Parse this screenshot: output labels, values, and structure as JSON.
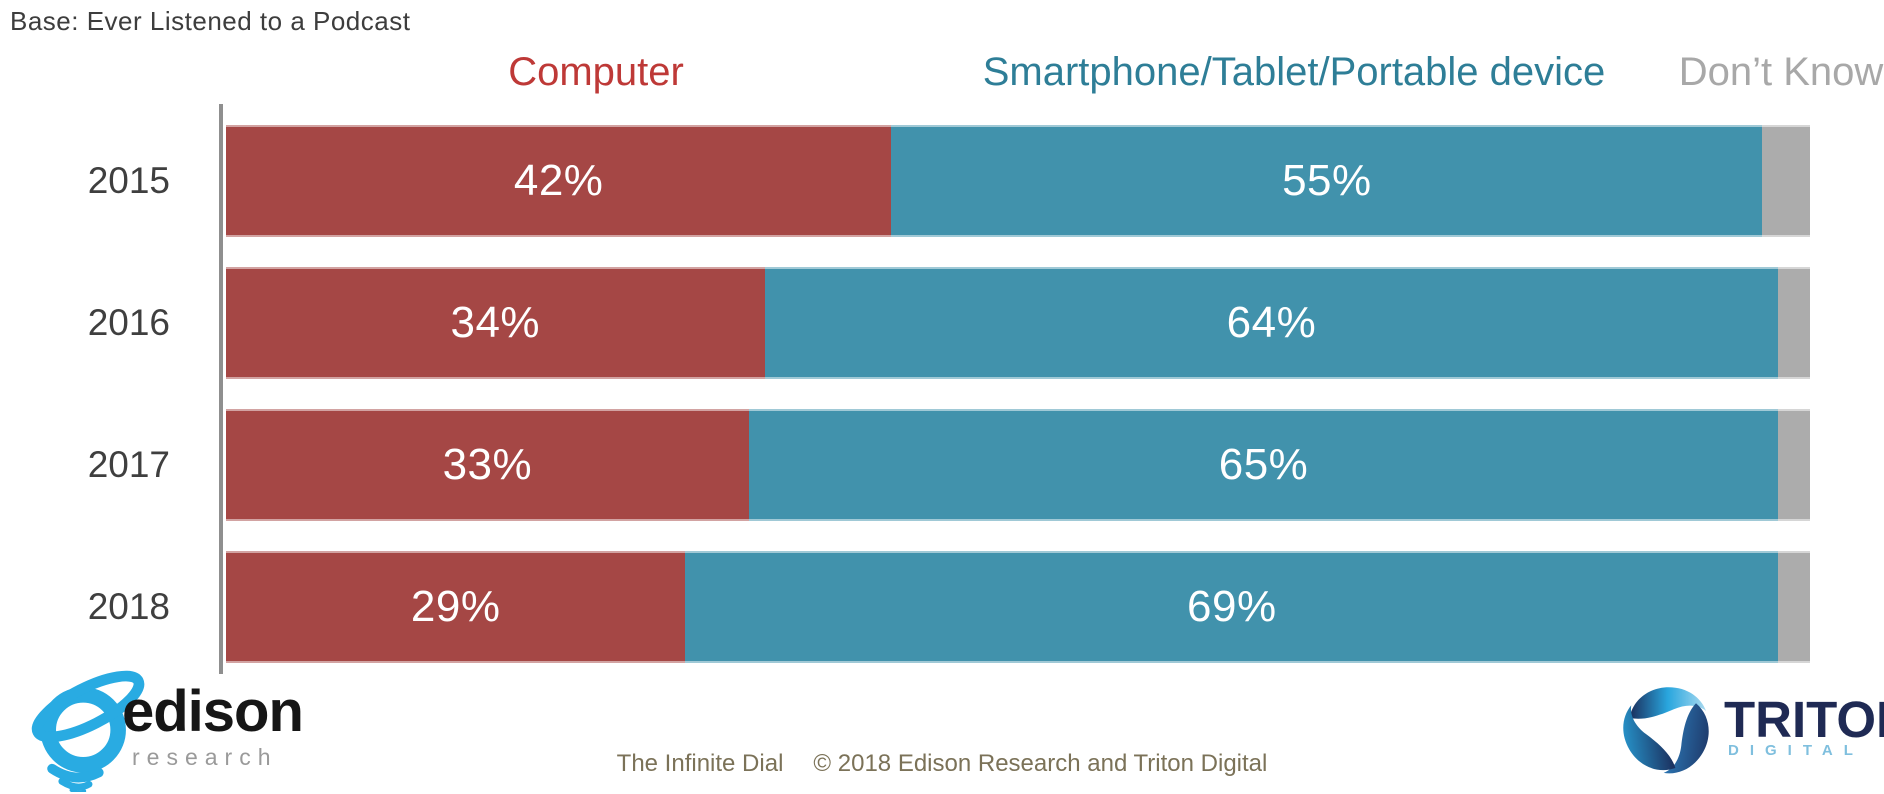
{
  "title": "Base: Ever Listened to a Podcast",
  "legend": [
    {
      "label": "Computer",
      "color": "#be3937"
    },
    {
      "label": "Smartphone/Tablet/Portable device",
      "color": "#2e7e97"
    },
    {
      "label": "Don’t Know",
      "color": "#a8a8a8"
    }
  ],
  "chart_data": {
    "type": "bar",
    "orientation": "horizontal",
    "stacked": true,
    "title": "Base: Ever Listened to a Podcast",
    "categories": [
      "2015",
      "2016",
      "2017",
      "2018"
    ],
    "series": [
      {
        "key": "computer",
        "name": "Computer",
        "color": "#a54745",
        "values": [
          42,
          34,
          33,
          29
        ],
        "labels": [
          "42%",
          "34%",
          "33%",
          "29%"
        ]
      },
      {
        "key": "smartphone",
        "name": "Smartphone/Tablet/Portable device",
        "color": "#4192ac",
        "values": [
          55,
          64,
          65,
          69
        ],
        "labels": [
          "55%",
          "64%",
          "65%",
          "69%"
        ]
      },
      {
        "key": "dont-know",
        "name": "Don’t Know",
        "color": "#acacac",
        "values": [
          3,
          2,
          2,
          2
        ],
        "labels": [
          "",
          "",
          "",
          ""
        ]
      }
    ],
    "xlim": [
      0,
      100
    ],
    "grid": false,
    "legend_position": "top",
    "value_labels": "shown in white inside Computer and Smartphone segments; Don't Know segments unlabeled"
  },
  "footer": {
    "series_title": "The Infinite Dial",
    "copyright": "© 2018 Edison Research and Triton Digital"
  },
  "logos": {
    "edison": {
      "name": "edison",
      "sub": "research",
      "icon_color": "#29abe2"
    },
    "triton": {
      "name": "TRITON",
      "tm": "™",
      "sub": "DIGITAL",
      "name_color": "#1f2a54",
      "sub_color": "#7fbfde"
    }
  }
}
